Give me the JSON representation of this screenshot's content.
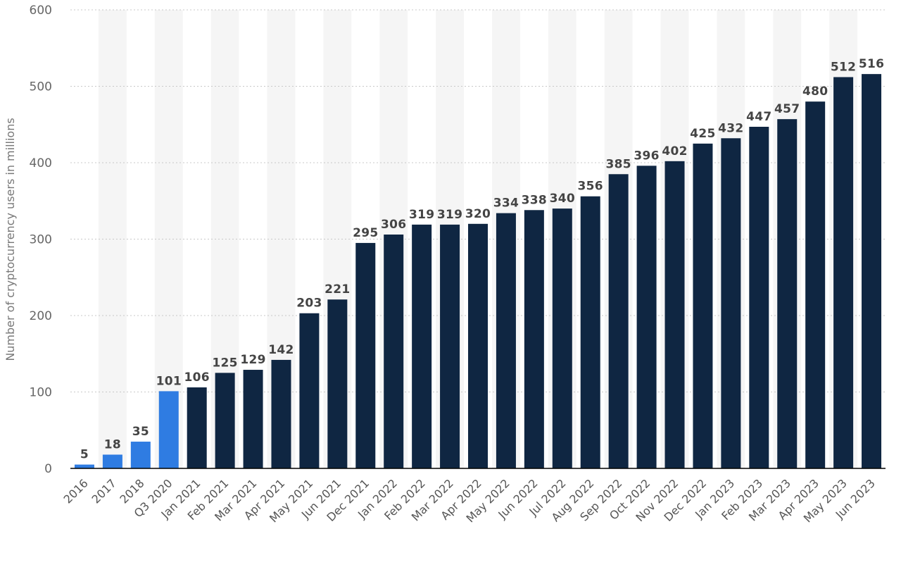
{
  "chart_data": {
    "type": "bar",
    "ylabel": "Number of cryptocurrency users in millions",
    "xlabel": "",
    "ylim": [
      0,
      600
    ],
    "yticks": [
      0,
      100,
      200,
      300,
      400,
      500,
      600
    ],
    "grid": true,
    "legend": "none",
    "categories": [
      "2016",
      "2017",
      "2018",
      "Q3 2020",
      "Jan 2021",
      "Feb 2021",
      "Mar 2021",
      "Apr 2021",
      "May 2021",
      "Jun 2021",
      "Dec 2021",
      "Jan 2022",
      "Feb 2022",
      "Mar 2022",
      "Apr 2022",
      "May 2022",
      "Jun 2022",
      "Jul 2022",
      "Aug 2022",
      "Sep 2022",
      "Oct 2022",
      "Nov 2022",
      "Dec 2022",
      "Jan 2023",
      "Feb 2023",
      "Mar 2023",
      "Apr 2023",
      "May 2023",
      "Jun 2023"
    ],
    "values": [
      5,
      18,
      35,
      101,
      106,
      125,
      129,
      142,
      203,
      221,
      295,
      306,
      319,
      319,
      320,
      334,
      338,
      340,
      356,
      385,
      396,
      402,
      425,
      432,
      447,
      457,
      480,
      512,
      516
    ],
    "bar_colors": [
      "#2f7ce2",
      "#2f7ce2",
      "#2f7ce2",
      "#2f7ce2",
      "#0f2642",
      "#0f2642",
      "#0f2642",
      "#0f2642",
      "#0f2642",
      "#0f2642",
      "#0f2642",
      "#0f2642",
      "#0f2642",
      "#0f2642",
      "#0f2642",
      "#0f2642",
      "#0f2642",
      "#0f2642",
      "#0f2642",
      "#0f2642",
      "#0f2642",
      "#0f2642",
      "#0f2642",
      "#0f2642",
      "#0f2642",
      "#0f2642",
      "#0f2642",
      "#0f2642",
      "#0f2642"
    ]
  }
}
